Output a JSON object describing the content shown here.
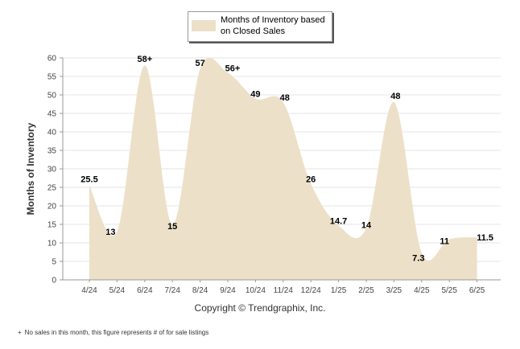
{
  "legend": {
    "label": "Months of Inventory based\non Closed Sales",
    "swatch_color": "#ede0c8"
  },
  "copyright": "Copyright © Trendgraphix, Inc.",
  "footnote": {
    "mark": "+",
    "text": "No sales in this month, this figure represents # of for sale listings"
  },
  "chart_data": {
    "type": "area",
    "ylabel": "Months of Inventory",
    "xlabel": "",
    "ylim": [
      0,
      60
    ],
    "yticks": [
      0,
      5,
      10,
      15,
      20,
      25,
      30,
      35,
      40,
      45,
      50,
      55,
      60
    ],
    "grid": true,
    "legend_position": "top-center",
    "fill_color": "#ede0c8",
    "categories": [
      "4/24",
      "5/24",
      "6/24",
      "7/24",
      "8/24",
      "9/24",
      "10/24",
      "11/24",
      "12/24",
      "1/25",
      "2/25",
      "3/25",
      "4/25",
      "5/25",
      "6/25"
    ],
    "series": [
      {
        "name": "Months of Inventory based on Closed Sales",
        "values": [
          25.5,
          13,
          58,
          15,
          57,
          56,
          49,
          48,
          26,
          14.7,
          14,
          48,
          7.3,
          11,
          11.5
        ],
        "labels": [
          "25.5",
          "13",
          "58+",
          "15",
          "57",
          "56+",
          "49",
          "48",
          "26",
          "14.7",
          "14",
          "48",
          "7.3",
          "11",
          "11.5"
        ]
      }
    ]
  }
}
